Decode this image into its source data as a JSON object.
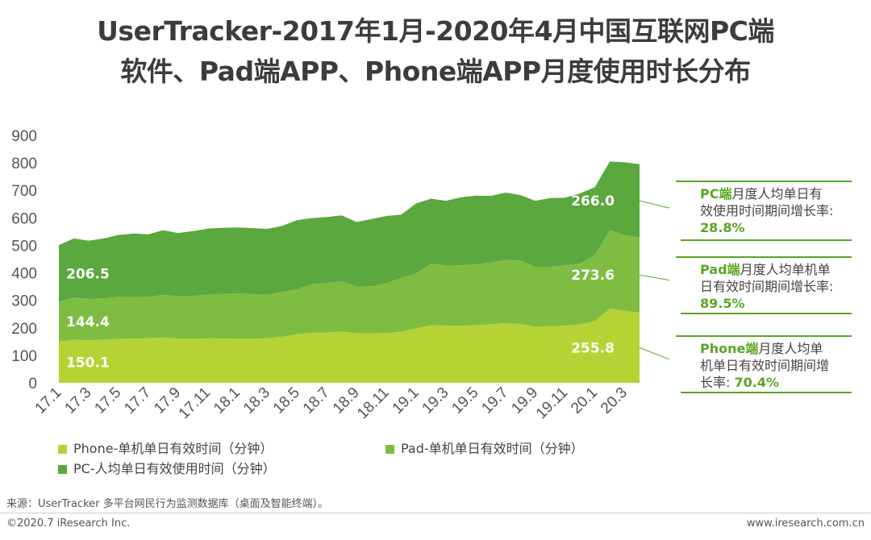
{
  "title_line1": "UserTracker-2017年1月-2020年4月中国互联网PC端",
  "title_line2": "软件、Pad端APP、Phone端APP月度使用时长分布",
  "callouts": {
    "pc": {
      "highlight": "PC端",
      "line1": "月度人均单日有",
      "line2": "效使用时间期间增长率:",
      "rate": "28.8%"
    },
    "pad": {
      "highlight": "Pad端",
      "line1": "月度人均单机单",
      "line2": "日有效时间期间增长率:",
      "rate": "89.5%"
    },
    "phone": {
      "highlight": "Phone端",
      "line1": "月度人均单",
      "line2": "机单日有效时间期间增",
      "line3": "长率:",
      "rate": "70.4%"
    }
  },
  "footer": {
    "source": "来源：UserTracker 多平台网民行为监测数据库（桌面及智能终端）。",
    "copyright": "©2020.7 iResearch Inc.",
    "site": "www.iresearch.com.cn"
  },
  "chart_data": {
    "type": "area",
    "stacked": true,
    "ylim": [
      0,
      900
    ],
    "yticks": [
      0,
      100,
      200,
      300,
      400,
      500,
      600,
      700,
      800,
      900
    ],
    "x": [
      "17.1",
      "17.2",
      "17.3",
      "17.4",
      "17.5",
      "17.6",
      "17.7",
      "17.8",
      "17.9",
      "17.10",
      "17.11",
      "17.12",
      "18.1",
      "18.2",
      "18.3",
      "18.4",
      "18.5",
      "18.6",
      "18.7",
      "18.8",
      "18.9",
      "18.10",
      "18.11",
      "18.12",
      "19.1",
      "19.2",
      "19.3",
      "19.4",
      "19.5",
      "19.6",
      "19.7",
      "19.8",
      "19.9",
      "19.10",
      "19.11",
      "19.12",
      "20.1",
      "20.2",
      "20.3",
      "20.4"
    ],
    "xtick_labels": [
      "17.1",
      "17.3",
      "17.5",
      "17.7",
      "17.9",
      "17.11",
      "18.1",
      "18.3",
      "18.5",
      "18.7",
      "18.9",
      "18.11",
      "19.1",
      "19.3",
      "19.5",
      "19.7",
      "19.9",
      "19.11",
      "20.1",
      "20.3"
    ],
    "legend_placement": "bottom",
    "series": [
      {
        "name": "Phone-单机单日有效时间（分钟）",
        "color": "#b5d334",
        "values": [
          150.1,
          157,
          155,
          157,
          160,
          161,
          162,
          165,
          160,
          160,
          162,
          161,
          160,
          160,
          162,
          168,
          177,
          182,
          183,
          186,
          180,
          180,
          181,
          186,
          198,
          210,
          208,
          207,
          210,
          212,
          218,
          214,
          205,
          206,
          208,
          212,
          225,
          270,
          262,
          255.8
        ],
        "start_label": "150.1",
        "end_label": "255.8"
      },
      {
        "name": "Pad-单机单日有效时间（分钟）",
        "color": "#7fbd42",
        "values": [
          144.4,
          153,
          150,
          150,
          153,
          150,
          150,
          155,
          155,
          156,
          159,
          163,
          165,
          163,
          158,
          163,
          163,
          177,
          180,
          183,
          170,
          171,
          181,
          196,
          200,
          224,
          218,
          221,
          221,
          226,
          229,
          231,
          217,
          216,
          220,
          222,
          240,
          285,
          275,
          273.6
        ],
        "start_label": "144.4",
        "end_label": "273.6"
      },
      {
        "name": "PC-人均单日有效使用时间（分钟）",
        "color": "#5aa83e",
        "values": [
          206.5,
          215,
          212,
          218,
          225,
          232,
          228,
          235,
          230,
          236,
          240,
          240,
          240,
          240,
          240,
          240,
          252,
          240,
          240,
          240,
          235,
          245,
          245,
          230,
          255,
          236,
          236,
          247,
          250,
          242,
          245,
          238,
          240,
          250,
          245,
          255,
          247,
          250,
          265,
          266.0
        ],
        "start_label": "206.5",
        "end_label": "266.0"
      }
    ]
  }
}
